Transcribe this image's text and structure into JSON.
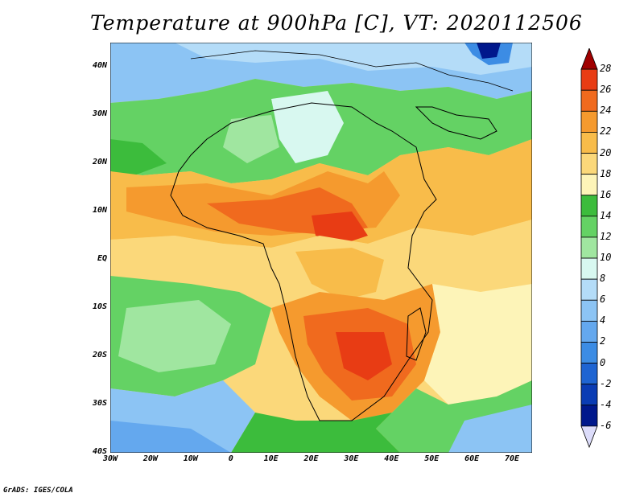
{
  "title": "Temperature at 900hPa [C], VT: 2020112506",
  "credit": "GrADS: IGES/COLA",
  "map": {
    "projection": "lat-lon",
    "lat_range": [
      -40,
      45
    ],
    "lon_range": [
      -30,
      75
    ],
    "lat_ticks": [
      {
        "value": 40,
        "label": "40N"
      },
      {
        "value": 30,
        "label": "30N"
      },
      {
        "value": 20,
        "label": "20N"
      },
      {
        "value": 10,
        "label": "10N"
      },
      {
        "value": 0,
        "label": "EQ"
      },
      {
        "value": -10,
        "label": "10S"
      },
      {
        "value": -20,
        "label": "20S"
      },
      {
        "value": -30,
        "label": "30S"
      },
      {
        "value": -40,
        "label": "40S"
      }
    ],
    "lon_ticks": [
      {
        "value": -30,
        "label": "30W"
      },
      {
        "value": -20,
        "label": "20W"
      },
      {
        "value": -10,
        "label": "10W"
      },
      {
        "value": 0,
        "label": "0"
      },
      {
        "value": 10,
        "label": "10E"
      },
      {
        "value": 20,
        "label": "20E"
      },
      {
        "value": 30,
        "label": "30E"
      },
      {
        "value": 40,
        "label": "40E"
      },
      {
        "value": 50,
        "label": "50E"
      },
      {
        "value": 60,
        "label": "60E"
      },
      {
        "value": 70,
        "label": "70E"
      }
    ]
  },
  "colorbar": {
    "levels": [
      "28",
      "26",
      "24",
      "22",
      "20",
      "18",
      "16",
      "14",
      "12",
      "10",
      "8",
      "6",
      "4",
      "2",
      "0",
      "-2",
      "-4",
      "-6"
    ],
    "colors": [
      "#a00000",
      "#e83c14",
      "#f06a1e",
      "#f59a2e",
      "#f8bc4a",
      "#fbd87a",
      "#fdf4b8",
      "#3cbc3c",
      "#64d264",
      "#a0e6a0",
      "#d8f8f0",
      "#b4dcf8",
      "#8cc4f4",
      "#64a8ee",
      "#3c8ce4",
      "#1e64d2",
      "#0a3cb4",
      "#00188c",
      "#dcdcfa"
    ]
  }
}
